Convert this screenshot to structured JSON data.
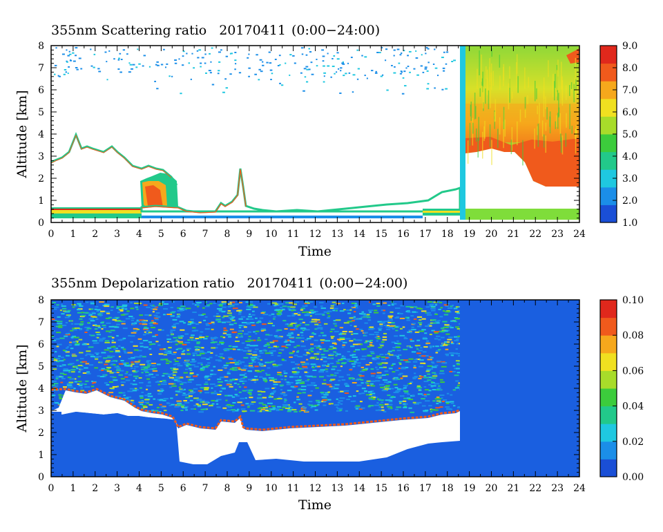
{
  "chart_data": [
    {
      "type": "heatmap",
      "title": "355nm Scattering ratio",
      "date": "20170411",
      "time_range": "(0:00−24:00)",
      "xlabel": "Time",
      "ylabel": "Altitude [km]",
      "xlim": [
        0,
        24
      ],
      "ylim": [
        0,
        8
      ],
      "x_ticks": [
        "0",
        "1",
        "2",
        "3",
        "4",
        "5",
        "6",
        "7",
        "8",
        "9",
        "10",
        "11",
        "12",
        "13",
        "14",
        "15",
        "16",
        "17",
        "18",
        "19",
        "20",
        "21",
        "22",
        "23",
        "24"
      ],
      "y_ticks": [
        "0",
        "1",
        "2",
        "3",
        "4",
        "5",
        "6",
        "7",
        "8"
      ],
      "colorbar": {
        "min": 1.0,
        "max": 9.0,
        "ticks": [
          "1.0",
          "2.0",
          "3.0",
          "4.0",
          "5.0",
          "6.0",
          "7.0",
          "8.0",
          "9.0"
        ],
        "colors": [
          "#1a4fd6",
          "#1b8ee8",
          "#1fc8e0",
          "#22c98a",
          "#3ccc3c",
          "#a8dc2a",
          "#f0e020",
          "#f6a81c",
          "#f05a1c",
          "#e0281c"
        ]
      },
      "features": [
        {
          "name": "cloud_layer",
          "time_range": [
            18.6,
            24
          ],
          "altitude_range": [
            1.6,
            8
          ],
          "value_approx": 7.5
        },
        {
          "name": "aerosol_boundary_layer",
          "time_range": [
            0,
            18.6
          ],
          "top_altitude_approx": 0.6
        },
        {
          "name": "plume",
          "time_range": [
            4.0,
            5.7
          ],
          "altitude_range": [
            0.6,
            2.0
          ],
          "value_approx": 8
        },
        {
          "name": "residual_layer_top",
          "time_range": [
            0,
            4.3
          ],
          "altitude_approx": 3.5
        }
      ]
    },
    {
      "type": "heatmap",
      "title": "355nm Depolarization ratio",
      "date": "20170411",
      "time_range": "(0:00−24:00)",
      "xlabel": "Time",
      "ylabel": "Altitude [km]",
      "xlim": [
        0,
        24
      ],
      "ylim": [
        0,
        8
      ],
      "x_ticks": [
        "0",
        "1",
        "2",
        "3",
        "4",
        "5",
        "6",
        "7",
        "8",
        "9",
        "10",
        "11",
        "12",
        "13",
        "14",
        "15",
        "16",
        "17",
        "18",
        "19",
        "20",
        "21",
        "22",
        "23",
        "24"
      ],
      "y_ticks": [
        "0",
        "1",
        "2",
        "3",
        "4",
        "5",
        "6",
        "7",
        "8"
      ],
      "colorbar": {
        "min": 0.0,
        "max": 0.1,
        "ticks": [
          "0.00",
          "0.02",
          "0.04",
          "0.06",
          "0.08",
          "0.10"
        ],
        "colors": [
          "#1a4fd6",
          "#1b8ee8",
          "#1fc8e0",
          "#22c98a",
          "#3ccc3c",
          "#a8dc2a",
          "#f0e020",
          "#f6a81c",
          "#f05a1c",
          "#e0281c"
        ]
      },
      "features": [
        {
          "name": "noisy_free_troposphere",
          "time_range": [
            0,
            18.6
          ],
          "altitude_range": [
            2.5,
            8
          ],
          "value_approx": 0.03
        },
        {
          "name": "cloud_low_depol",
          "time_range": [
            18.6,
            24
          ],
          "altitude_range": [
            0,
            8
          ],
          "value_approx": 0.0
        },
        {
          "name": "boundary_layer_top",
          "time_range": [
            0,
            18.6
          ],
          "altitude_approx": 2.5
        }
      ]
    }
  ]
}
